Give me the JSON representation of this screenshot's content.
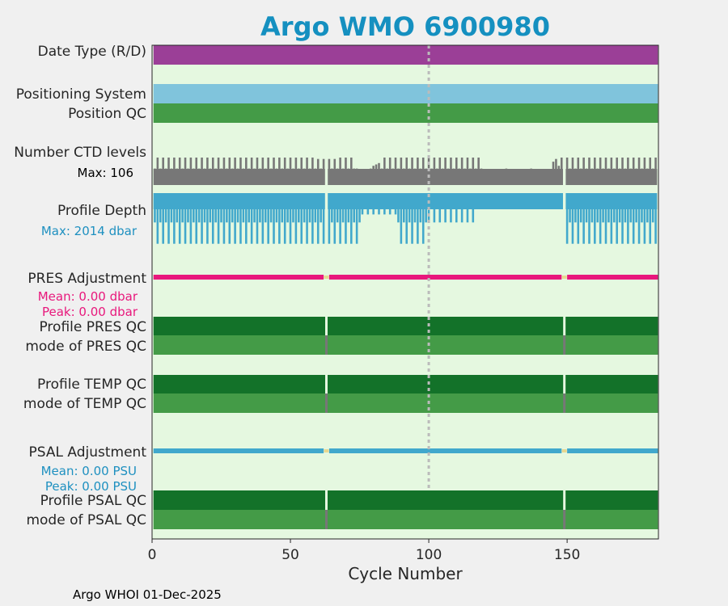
{
  "chart_data": {
    "type": "bar",
    "title": "Argo WMO 6900980",
    "xlabel": "Cycle Number",
    "xlim": [
      0,
      183
    ],
    "xticks": [
      "0",
      "50",
      "100",
      "150"
    ],
    "xtick_values": [
      0,
      50,
      100,
      150
    ],
    "reference_line_x": 100,
    "gap_cycles": [
      63,
      149
    ],
    "last_cycle": 182,
    "rows": {
      "date_type": "Date Type (R/D)",
      "positioning_system": "Positioning System",
      "position_qc": "Position QC",
      "ctd_levels": "Number CTD levels",
      "profile_depth": "Profile Depth",
      "pres_adjustment": "PRES Adjustment",
      "profile_pres_qc": "Profile PRES QC",
      "mode_pres_qc": "mode of PRES QC",
      "profile_temp_qc": "Profile TEMP QC",
      "mode_temp_qc": "mode of TEMP QC",
      "psal_adjustment": "PSAL Adjustment",
      "profile_psal_qc": "Profile PSAL QC",
      "mode_psal_qc": "mode of PSAL QC"
    },
    "annotations": {
      "ctd_max": "Max: 106",
      "depth_max": "Max: 2014 dbar",
      "pres_mean": "Mean: 0.00 dbar",
      "pres_peak": "Peak: 0.00 dbar",
      "psal_mean": "Mean: 0.00 PSU",
      "psal_peak": "Peak: 0.00 PSU"
    },
    "ctd_levels_max": 106,
    "profile_depth_max_dbar": 2014,
    "pres_adjustment_mean_dbar": 0.0,
    "pres_adjustment_peak_dbar": 0.0,
    "psal_adjustment_mean_psu": 0.0,
    "psal_adjustment_peak_psu": 0.0,
    "colors": {
      "background": "#e5f8e0",
      "page": "#f0f0f0",
      "title": "#1590c0",
      "date_type": "#9b3f97",
      "positioning": "#80c4dc",
      "qc_good_dark": "#137229",
      "qc_good": "#449b47",
      "ctd": "#777777",
      "depth": "#41a8cc",
      "pres": "#e8187c",
      "psal": "#41a8cc",
      "gap": "#e8d890",
      "refline": "#bbbbbb",
      "depth_text": "#1e90c0"
    }
  },
  "footer": "Argo WHOI 01-Dec-2025"
}
